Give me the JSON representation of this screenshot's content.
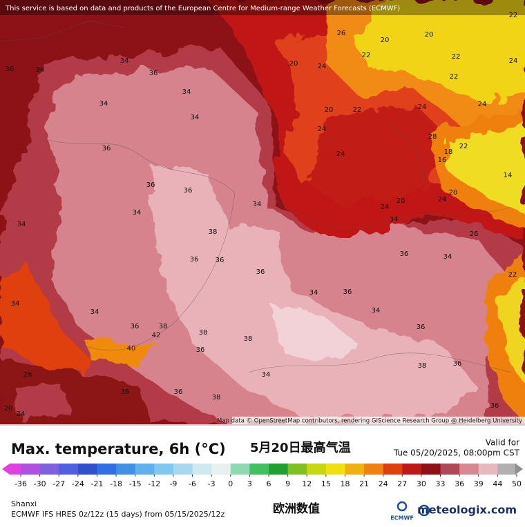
{
  "header": {
    "notice": "This service is based on data and products of the European Centre for Medium-range Weather Forecasts (ECMWF)"
  },
  "map": {
    "attribution": "Map data © OpenStreetMap contributors, rendering GIScience Research Group @ Heidelberg University",
    "labels": [
      "36",
      "34",
      "34",
      "36",
      "34",
      "36",
      "36",
      "36",
      "34",
      "38",
      "36",
      "36",
      "36",
      "34",
      "36",
      "38",
      "42",
      "40",
      "38",
      "38",
      "36",
      "34",
      "36",
      "38",
      "36",
      "26",
      "36",
      "34",
      "34",
      "36",
      "34",
      "36",
      "38",
      "36",
      "36",
      "22",
      "34",
      "24",
      "20",
      "20",
      "24",
      "24",
      "24",
      "22",
      "20",
      "24",
      "22",
      "26",
      "20",
      "20",
      "22",
      "22",
      "24",
      "24",
      "22",
      "24",
      "28",
      "18",
      "22",
      "16",
      "14",
      "26",
      "20",
      "34",
      "34",
      "34",
      "34",
      "34",
      "20",
      "24"
    ]
  },
  "footer": {
    "title": "Max. temperature, 6h (°C)",
    "title_cn": "5月20日最高气温",
    "valid_label": "Valid for",
    "valid_time": "Tue 05/20/2025, 08:00pm CST",
    "region": "Shanxi",
    "model": "ECMWF IFS HRES 0z/12z (15 days) from 05/15/2025/12z",
    "model_cn": "欧洲数值",
    "logo_ecmwf": "ECMWF",
    "logo_meteologix": "meteologix.com"
  },
  "colorbar": {
    "ticks": [
      -36,
      -30,
      -27,
      -24,
      -21,
      -18,
      -15,
      -12,
      -9,
      -6,
      -3,
      0,
      3,
      6,
      9,
      12,
      15,
      18,
      21,
      24,
      27,
      30,
      33,
      36,
      39,
      44,
      50
    ],
    "colors": [
      "#e040e0",
      "#b050e0",
      "#8060e0",
      "#5060e0",
      "#3050d0",
      "#3070e0",
      "#4090e8",
      "#60b0f0",
      "#80c8f0",
      "#a8d8f0",
      "#d0e8f0",
      "#e8f0f0",
      "#90d8b0",
      "#40c060",
      "#20a030",
      "#80c020",
      "#c8d810",
      "#f0e010",
      "#f0b010",
      "#f08010",
      "#e04010",
      "#c01818",
      "#901018",
      "#b04858",
      "#d88890",
      "#e8b8c0",
      "#b0b0b0",
      "#909090"
    ]
  }
}
